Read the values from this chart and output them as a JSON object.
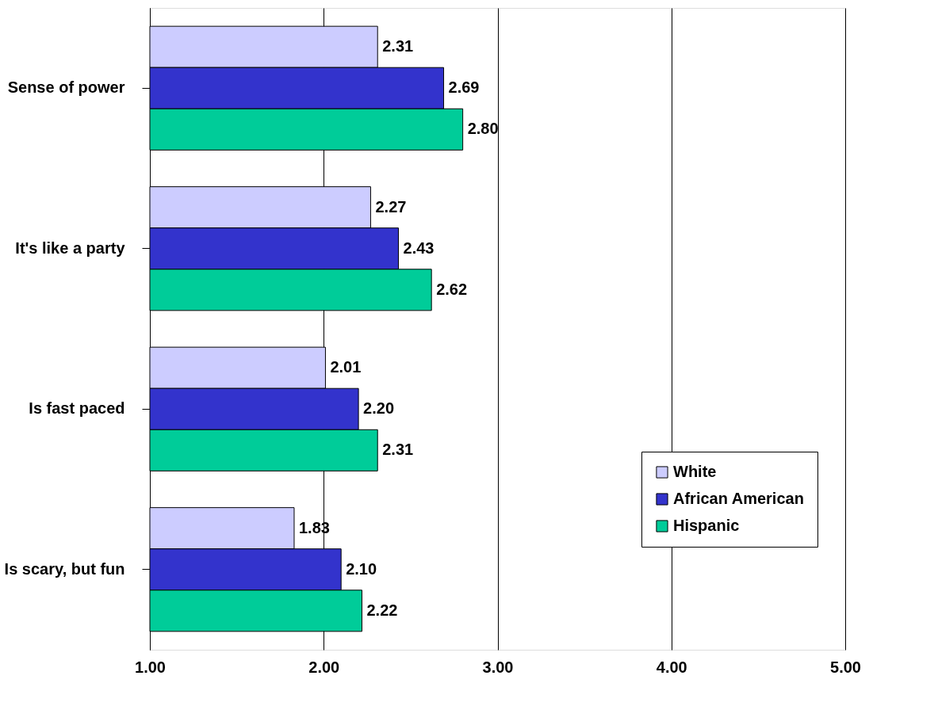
{
  "chart_data": {
    "type": "bar",
    "orientation": "horizontal",
    "categories": [
      "Sense of power",
      "It's like a party",
      "Is fast paced",
      "Is scary, but fun"
    ],
    "series": [
      {
        "name": "White",
        "color": "#ccccff",
        "values": [
          2.31,
          2.27,
          2.01,
          1.83
        ],
        "value_labels": [
          "2.31",
          "2.27",
          "2.01",
          "1.83"
        ]
      },
      {
        "name": "African American",
        "color": "#3333cc",
        "values": [
          2.69,
          2.43,
          2.2,
          2.1
        ],
        "value_labels": [
          "2.69",
          "2.43",
          "2.20",
          "2.10"
        ]
      },
      {
        "name": "Hispanic",
        "color": "#00cc99",
        "values": [
          2.8,
          2.62,
          2.31,
          2.22
        ],
        "value_labels": [
          "2.80",
          "2.62",
          "2.31",
          "2.22"
        ]
      }
    ],
    "xlim": [
      1,
      5
    ],
    "xticks": [
      {
        "value": 1,
        "label": "1.00"
      },
      {
        "value": 2,
        "label": "2.00"
      },
      {
        "value": 3,
        "label": "3.00"
      },
      {
        "value": 4,
        "label": "4.00"
      },
      {
        "value": 5,
        "label": "5.00"
      }
    ],
    "grid": "x",
    "legend": "bottom right"
  }
}
